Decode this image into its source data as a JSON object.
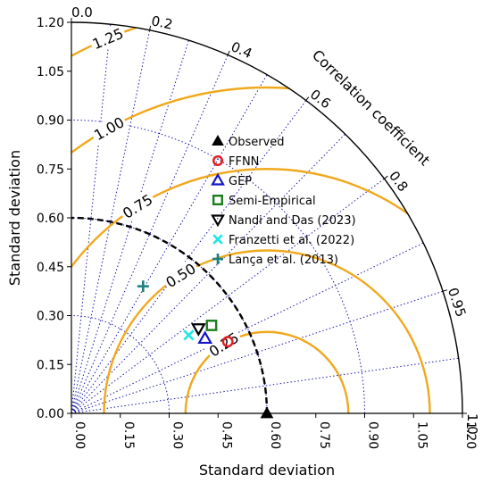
{
  "chart_data": {
    "type": "scatter",
    "subtype": "taylor_diagram",
    "xlabel": "Standard deviation",
    "ylabel": "Standard deviation",
    "arc_label": "Correlation coefficient",
    "std_range": [
      0,
      1.2
    ],
    "std_ticks": [
      "0.00",
      "0.15",
      "0.30",
      "0.45",
      "0.60",
      "0.75",
      "0.90",
      "1.05",
      "1.20"
    ],
    "correlation_ticks": [
      {
        "value": 0.0,
        "label": "0.0"
      },
      {
        "value": 0.2,
        "label": "0.2"
      },
      {
        "value": 0.4,
        "label": "0.4"
      },
      {
        "value": 0.6,
        "label": "0.6"
      },
      {
        "value": 0.8,
        "label": "0.8"
      },
      {
        "value": 0.95,
        "label": "0.95"
      },
      {
        "value": 1.0,
        "label": "1.0"
      }
    ],
    "correlation_gridlines": [
      0.1,
      0.2,
      0.3,
      0.4,
      0.5,
      0.6,
      0.7,
      0.8,
      0.9,
      0.95,
      0.99
    ],
    "std_gridlines": [
      0.3,
      0.6,
      0.9,
      1.2
    ],
    "reference_std": 0.6,
    "rms_contours": [
      {
        "value": 0.25,
        "label": "0.25"
      },
      {
        "value": 0.5,
        "label": "0.50"
      },
      {
        "value": 0.75,
        "label": "0.75"
      },
      {
        "value": 1.0,
        "label": "1.00"
      },
      {
        "value": 1.25,
        "label": "1.25"
      }
    ],
    "grid": true,
    "legend_position": "center",
    "series": [
      {
        "name": "Observed",
        "marker": "triangle-up",
        "color": "#000000",
        "x": 0.6,
        "y": 0.0
      },
      {
        "name": "FFNN",
        "marker": "circle",
        "color": "#e41a1c",
        "x": 0.48,
        "y": 0.22
      },
      {
        "name": "GEP",
        "marker": "triangle-up-open",
        "color": "#1515c8",
        "x": 0.41,
        "y": 0.23
      },
      {
        "name": "Semi-Empirical",
        "marker": "square",
        "color": "#1a7f1a",
        "x": 0.43,
        "y": 0.27
      },
      {
        "name": "Nandi and Das (2023)",
        "marker": "triangle-down-open",
        "color": "#000000",
        "x": 0.39,
        "y": 0.26
      },
      {
        "name": "Franzetti et al. (2022)",
        "marker": "x",
        "color": "#22e5e5",
        "x": 0.36,
        "y": 0.24
      },
      {
        "name": "Lança et al. (2013)",
        "marker": "plus",
        "color": "#1f7f7f",
        "x": 0.22,
        "y": 0.39
      }
    ],
    "colors": {
      "rms": "#f0a81c",
      "grid": "#1a1aaa",
      "ref_arc": "#000000",
      "axis": "#000000"
    }
  }
}
